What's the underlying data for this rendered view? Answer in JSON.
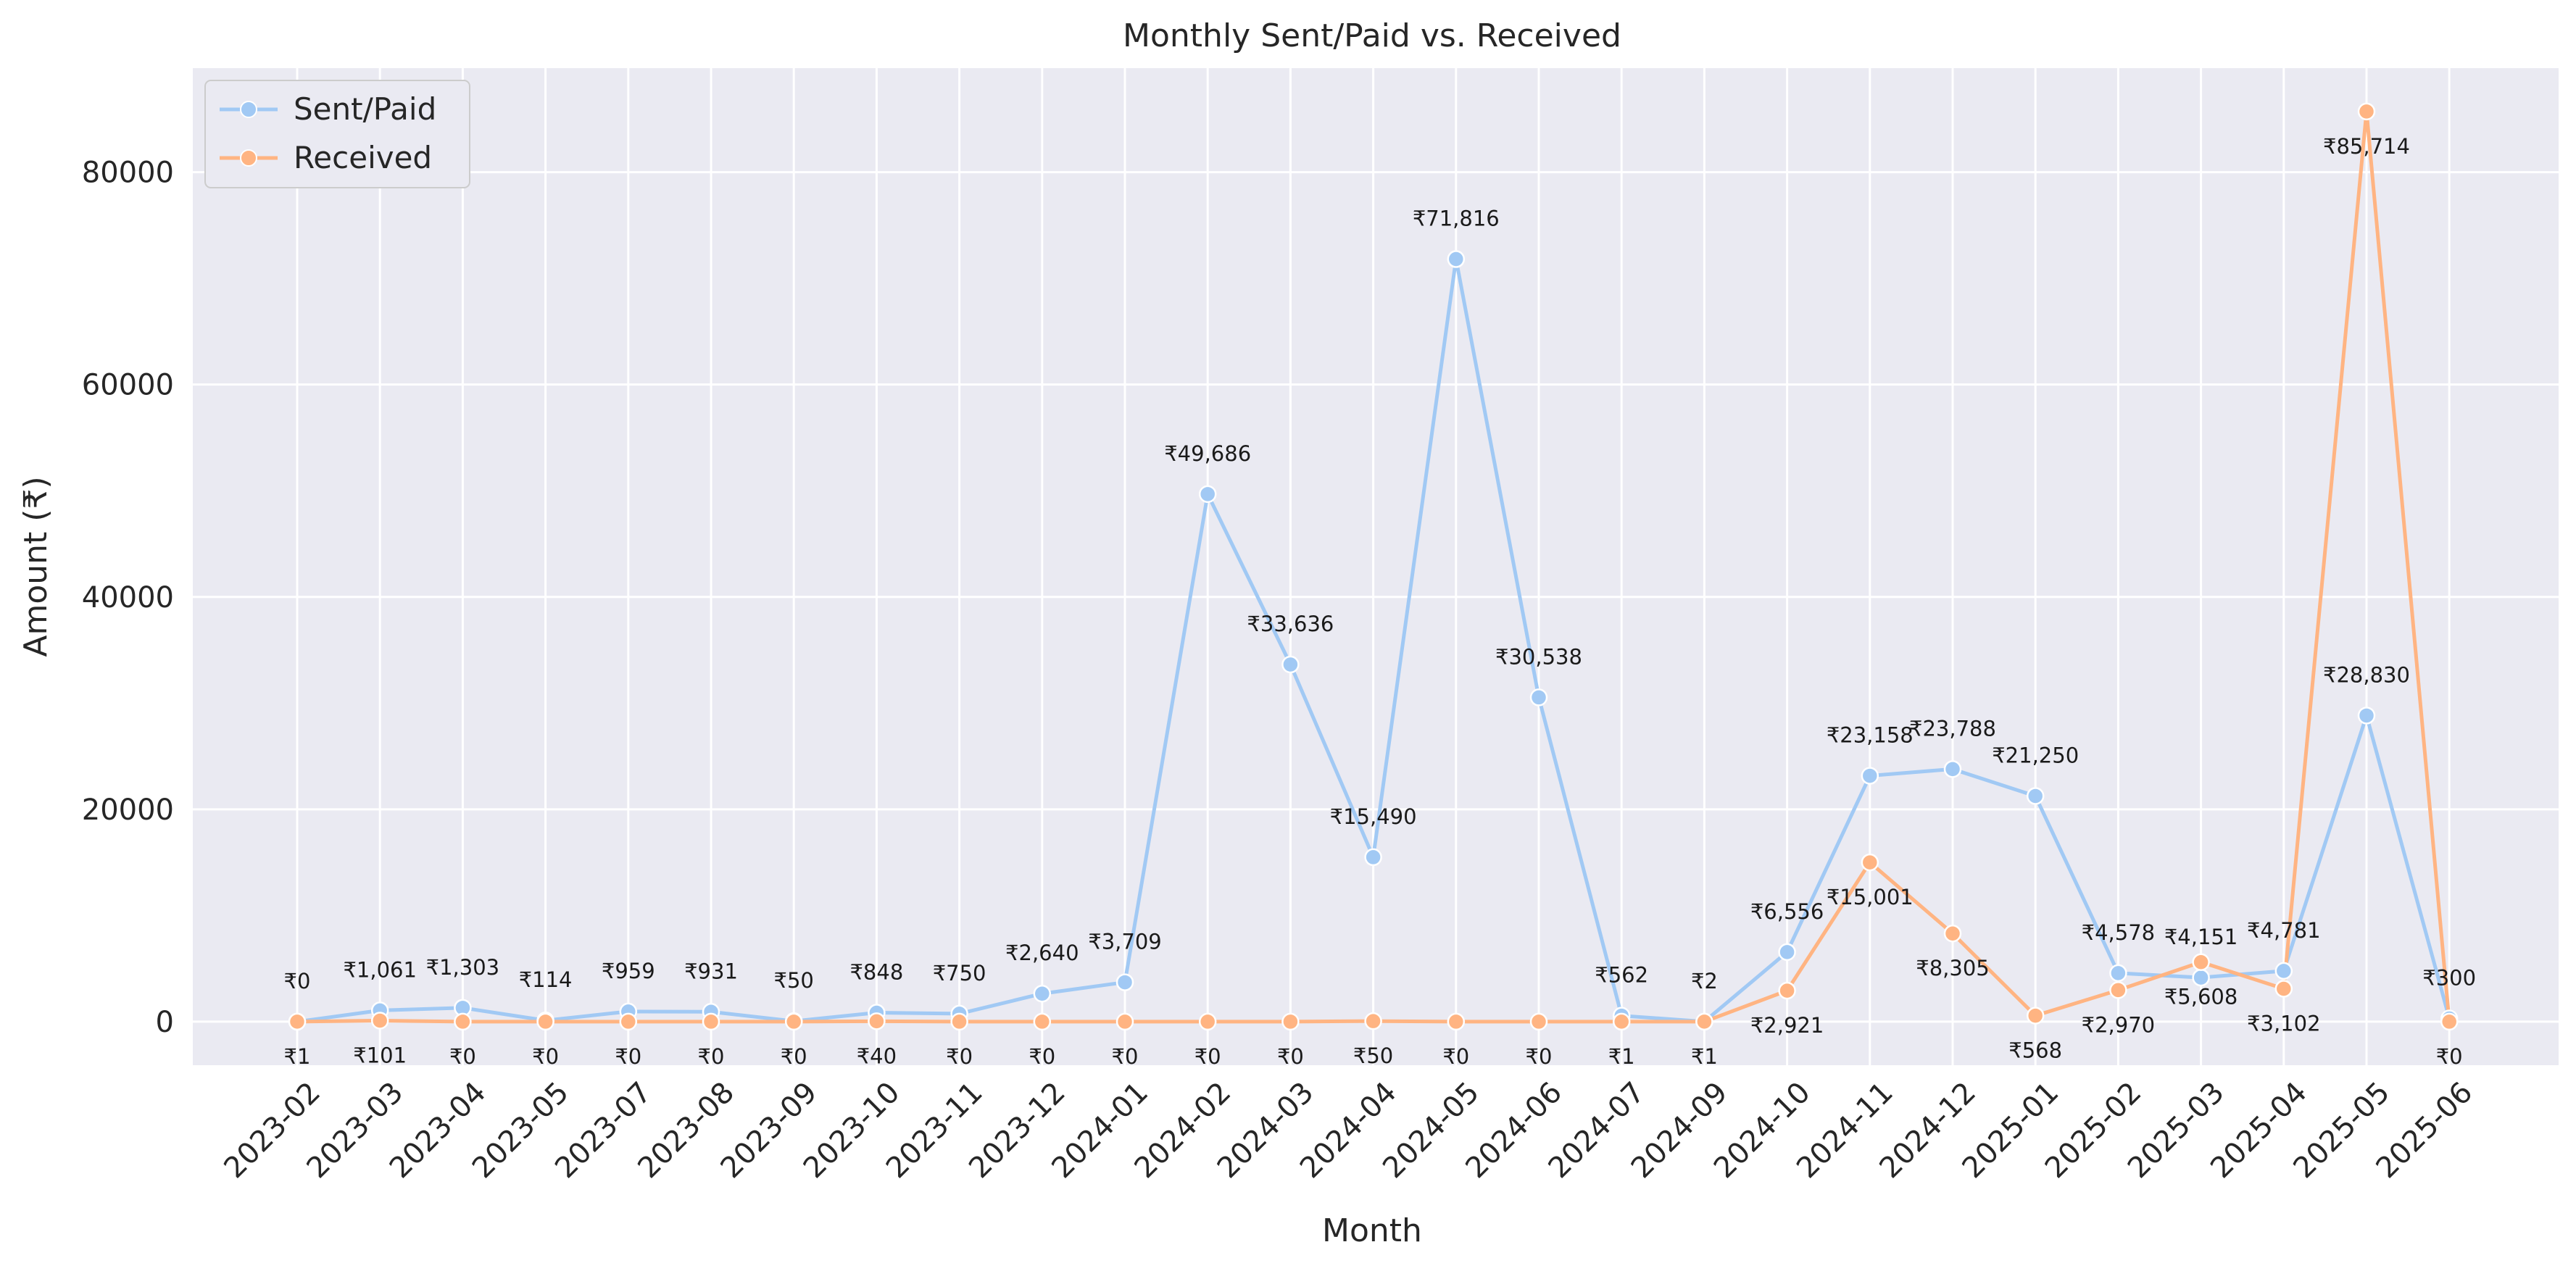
{
  "chart_data": {
    "type": "line",
    "title": "Monthly Sent/Paid vs. Received",
    "xlabel": "Month",
    "ylabel": "Amount (₹)",
    "x": [
      "2023-02",
      "2023-03",
      "2023-04",
      "2023-05",
      "2023-07",
      "2023-08",
      "2023-09",
      "2023-10",
      "2023-11",
      "2023-12",
      "2024-01",
      "2024-02",
      "2024-03",
      "2024-04",
      "2024-05",
      "2024-06",
      "2024-07",
      "2024-09",
      "2024-10",
      "2024-11",
      "2024-12",
      "2025-01",
      "2025-02",
      "2025-03",
      "2025-04",
      "2025-05",
      "2025-06"
    ],
    "ylim": [
      -4100,
      89800
    ],
    "yticks": [
      0,
      20000,
      40000,
      60000,
      80000
    ],
    "grid": true,
    "legend_position": "top-left",
    "series": [
      {
        "name": "Sent/Paid",
        "color": "#a1c9f4",
        "values": [
          0,
          1061,
          1303,
          114,
          959,
          931,
          50,
          848,
          750,
          2640,
          3709,
          49686,
          33636,
          15490,
          71816,
          30538,
          562,
          2,
          6556,
          23158,
          23788,
          21250,
          4578,
          4151,
          4781,
          28830,
          300
        ],
        "labels": [
          "₹0",
          "₹1,061",
          "₹1,303",
          "₹114",
          "₹959",
          "₹931",
          "₹50",
          "₹848",
          "₹750",
          "₹2,640",
          "₹3,709",
          "₹49,686",
          "₹33,636",
          "₹15,490",
          "₹71,816",
          "₹30,538",
          "₹562",
          "₹2",
          "₹6,556",
          "₹23,158",
          "₹23,788",
          "₹21,250",
          "₹4,578",
          "₹4,151",
          "₹4,781",
          "₹28,830",
          "₹300"
        ]
      },
      {
        "name": "Received",
        "color": "#ffb482",
        "values": [
          1,
          101,
          0,
          0,
          0,
          0,
          0,
          40,
          0,
          0,
          0,
          0,
          0,
          50,
          0,
          0,
          1,
          1,
          2921,
          15001,
          8305,
          568,
          2970,
          5608,
          3102,
          85714,
          0
        ],
        "labels": [
          "₹1",
          "₹101",
          "₹0",
          "₹0",
          "₹0",
          "₹0",
          "₹0",
          "₹40",
          "₹0",
          "₹0",
          "₹0",
          "₹0",
          "₹0",
          "₹50",
          "₹0",
          "₹0",
          "₹1",
          "₹1",
          "₹2,921",
          "₹15,001",
          "₹8,305",
          "₹568",
          "₹2,970",
          "₹5,608",
          "₹3,102",
          "₹85,714",
          "₹0"
        ]
      }
    ]
  }
}
